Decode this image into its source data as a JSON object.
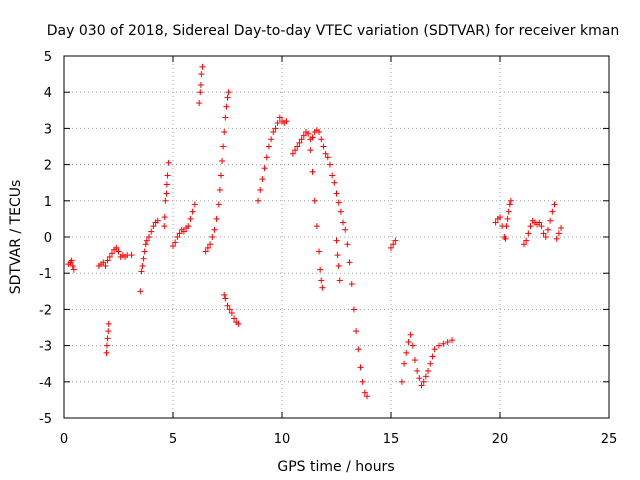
{
  "chart_data": {
    "type": "scatter",
    "title": "Day 030 of 2018, Sidereal Day-to-day VTEC variation (SDTVAR) for receiver kman",
    "xlabel": "GPS time / hours",
    "ylabel": "SDTVAR / TECUs",
    "xlim": [
      0,
      25
    ],
    "ylim": [
      -5,
      5
    ],
    "xticks": [
      0,
      5,
      10,
      15,
      20,
      25
    ],
    "yticks": [
      -5,
      -4,
      -3,
      -2,
      -1,
      0,
      1,
      2,
      3,
      4,
      5
    ],
    "grid": true,
    "marker": "+",
    "color": "#ff0000",
    "series": [
      {
        "name": "SDTVAR",
        "points": [
          [
            0.2,
            -0.75
          ],
          [
            0.3,
            -0.7
          ],
          [
            0.35,
            -0.65
          ],
          [
            0.4,
            -0.8
          ],
          [
            0.45,
            -0.9
          ],
          [
            1.6,
            -0.8
          ],
          [
            1.7,
            -0.75
          ],
          [
            1.8,
            -0.7
          ],
          [
            1.9,
            -0.8
          ],
          [
            1.95,
            -3.2
          ],
          [
            1.97,
            -3.0
          ],
          [
            2.0,
            -2.8
          ],
          [
            2.03,
            -2.6
          ],
          [
            2.05,
            -2.4
          ],
          [
            2.0,
            -0.65
          ],
          [
            2.1,
            -0.55
          ],
          [
            2.2,
            -0.45
          ],
          [
            2.3,
            -0.35
          ],
          [
            2.4,
            -0.3
          ],
          [
            2.5,
            -0.4
          ],
          [
            2.6,
            -0.55
          ],
          [
            2.7,
            -0.5
          ],
          [
            2.8,
            -0.55
          ],
          [
            2.9,
            -0.5
          ],
          [
            3.1,
            -0.5
          ],
          [
            3.5,
            -1.5
          ],
          [
            3.55,
            -0.95
          ],
          [
            3.6,
            -0.8
          ],
          [
            3.65,
            -0.6
          ],
          [
            3.7,
            -0.4
          ],
          [
            3.75,
            -0.2
          ],
          [
            3.8,
            -0.1
          ],
          [
            3.9,
            0.0
          ],
          [
            4.0,
            0.15
          ],
          [
            4.1,
            0.3
          ],
          [
            4.2,
            0.4
          ],
          [
            4.3,
            0.45
          ],
          [
            4.6,
            0.3
          ],
          [
            4.62,
            0.55
          ],
          [
            4.65,
            1.0
          ],
          [
            4.7,
            1.2
          ],
          [
            4.72,
            1.45
          ],
          [
            4.75,
            1.7
          ],
          [
            4.8,
            2.05
          ],
          [
            5.0,
            -0.25
          ],
          [
            5.1,
            -0.15
          ],
          [
            5.2,
            0.0
          ],
          [
            5.3,
            0.1
          ],
          [
            5.4,
            0.2
          ],
          [
            5.5,
            0.15
          ],
          [
            5.6,
            0.25
          ],
          [
            5.7,
            0.3
          ],
          [
            5.8,
            0.5
          ],
          [
            5.9,
            0.7
          ],
          [
            6.0,
            0.9
          ],
          [
            6.2,
            3.7
          ],
          [
            6.25,
            4.0
          ],
          [
            6.28,
            4.2
          ],
          [
            6.3,
            4.5
          ],
          [
            6.35,
            4.7
          ],
          [
            6.5,
            -0.4
          ],
          [
            6.6,
            -0.3
          ],
          [
            6.7,
            -0.2
          ],
          [
            6.8,
            0.0
          ],
          [
            6.9,
            0.2
          ],
          [
            7.0,
            0.5
          ],
          [
            7.1,
            0.9
          ],
          [
            7.15,
            1.3
          ],
          [
            7.2,
            1.7
          ],
          [
            7.25,
            2.1
          ],
          [
            7.3,
            2.5
          ],
          [
            7.35,
            2.9
          ],
          [
            7.4,
            3.3
          ],
          [
            7.45,
            3.6
          ],
          [
            7.5,
            3.85
          ],
          [
            7.55,
            4.0
          ],
          [
            7.35,
            -1.6
          ],
          [
            7.4,
            -1.7
          ],
          [
            7.5,
            -1.9
          ],
          [
            7.6,
            -2.0
          ],
          [
            7.7,
            -2.1
          ],
          [
            7.8,
            -2.25
          ],
          [
            7.9,
            -2.35
          ],
          [
            8.0,
            -2.4
          ],
          [
            8.9,
            1.0
          ],
          [
            9.0,
            1.3
          ],
          [
            9.1,
            1.6
          ],
          [
            9.2,
            1.9
          ],
          [
            9.3,
            2.2
          ],
          [
            9.4,
            2.5
          ],
          [
            9.5,
            2.7
          ],
          [
            9.6,
            2.9
          ],
          [
            9.7,
            3.0
          ],
          [
            9.8,
            3.15
          ],
          [
            9.9,
            3.3
          ],
          [
            10.0,
            3.2
          ],
          [
            10.1,
            3.15
          ],
          [
            10.2,
            3.2
          ],
          [
            10.5,
            2.3
          ],
          [
            10.6,
            2.4
          ],
          [
            10.7,
            2.5
          ],
          [
            10.8,
            2.6
          ],
          [
            10.9,
            2.7
          ],
          [
            11.0,
            2.8
          ],
          [
            11.1,
            2.9
          ],
          [
            11.2,
            2.85
          ],
          [
            11.3,
            2.7
          ],
          [
            11.4,
            2.75
          ],
          [
            11.5,
            2.9
          ],
          [
            11.6,
            2.95
          ],
          [
            11.7,
            2.9
          ],
          [
            11.8,
            2.7
          ],
          [
            11.3,
            2.4
          ],
          [
            11.4,
            1.8
          ],
          [
            11.5,
            1.0
          ],
          [
            11.6,
            0.3
          ],
          [
            11.7,
            -0.4
          ],
          [
            11.75,
            -0.9
          ],
          [
            11.8,
            -1.2
          ],
          [
            11.85,
            -1.4
          ],
          [
            11.9,
            2.5
          ],
          [
            12.0,
            2.3
          ],
          [
            12.1,
            2.2
          ],
          [
            12.2,
            2.0
          ],
          [
            12.3,
            1.7
          ],
          [
            12.4,
            1.5
          ],
          [
            12.5,
            1.2
          ],
          [
            12.6,
            0.95
          ],
          [
            12.7,
            0.7
          ],
          [
            12.8,
            0.4
          ],
          [
            12.5,
            -0.1
          ],
          [
            12.55,
            -0.5
          ],
          [
            12.6,
            -0.8
          ],
          [
            12.65,
            -1.2
          ],
          [
            12.9,
            0.2
          ],
          [
            13.0,
            -0.2
          ],
          [
            13.1,
            -0.7
          ],
          [
            13.2,
            -1.3
          ],
          [
            13.3,
            -2.0
          ],
          [
            13.4,
            -2.6
          ],
          [
            13.5,
            -3.1
          ],
          [
            13.6,
            -3.6
          ],
          [
            13.7,
            -4.0
          ],
          [
            13.8,
            -4.3
          ],
          [
            13.9,
            -4.4
          ],
          [
            15.0,
            -0.3
          ],
          [
            15.1,
            -0.2
          ],
          [
            15.2,
            -0.1
          ],
          [
            15.5,
            -4.0
          ],
          [
            15.6,
            -3.5
          ],
          [
            15.7,
            -3.2
          ],
          [
            15.8,
            -2.9
          ],
          [
            15.9,
            -2.7
          ],
          [
            16.0,
            -3.0
          ],
          [
            16.1,
            -3.4
          ],
          [
            16.2,
            -3.7
          ],
          [
            16.3,
            -3.9
          ],
          [
            16.4,
            -4.1
          ],
          [
            16.5,
            -4.0
          ],
          [
            16.6,
            -3.85
          ],
          [
            16.7,
            -3.7
          ],
          [
            16.8,
            -3.5
          ],
          [
            16.9,
            -3.3
          ],
          [
            17.0,
            -3.1
          ],
          [
            17.2,
            -3.0
          ],
          [
            17.4,
            -2.95
          ],
          [
            17.6,
            -2.9
          ],
          [
            17.8,
            -2.85
          ],
          [
            19.8,
            0.4
          ],
          [
            19.9,
            0.5
          ],
          [
            20.0,
            0.55
          ],
          [
            20.1,
            0.3
          ],
          [
            20.2,
            0.0
          ],
          [
            20.25,
            -0.05
          ],
          [
            20.3,
            0.3
          ],
          [
            20.35,
            0.5
          ],
          [
            20.4,
            0.7
          ],
          [
            20.45,
            0.9
          ],
          [
            20.5,
            1.0
          ],
          [
            21.1,
            -0.2
          ],
          [
            21.2,
            -0.1
          ],
          [
            21.3,
            0.1
          ],
          [
            21.4,
            0.3
          ],
          [
            21.5,
            0.45
          ],
          [
            21.6,
            0.4
          ],
          [
            21.7,
            0.35
          ],
          [
            21.8,
            0.4
          ],
          [
            21.9,
            0.3
          ],
          [
            22.0,
            0.1
          ],
          [
            22.1,
            0.0
          ],
          [
            22.2,
            0.2
          ],
          [
            22.3,
            0.45
          ],
          [
            22.4,
            0.7
          ],
          [
            22.5,
            0.9
          ],
          [
            22.6,
            -0.05
          ],
          [
            22.7,
            0.1
          ],
          [
            22.8,
            0.25
          ]
        ]
      }
    ]
  }
}
